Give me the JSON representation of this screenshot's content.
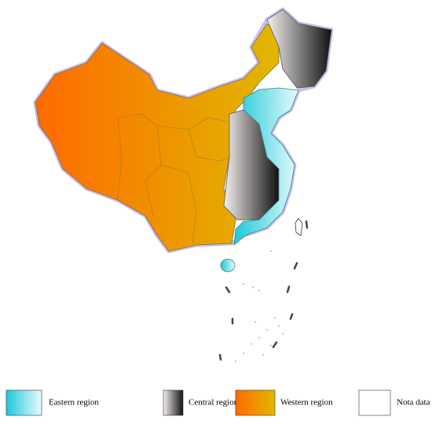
{
  "legend": [
    {
      "label": "Eastern region"
    },
    {
      "label": "Central region"
    },
    {
      "label": "Western region"
    },
    {
      "label": "Nota data"
    }
  ]
}
